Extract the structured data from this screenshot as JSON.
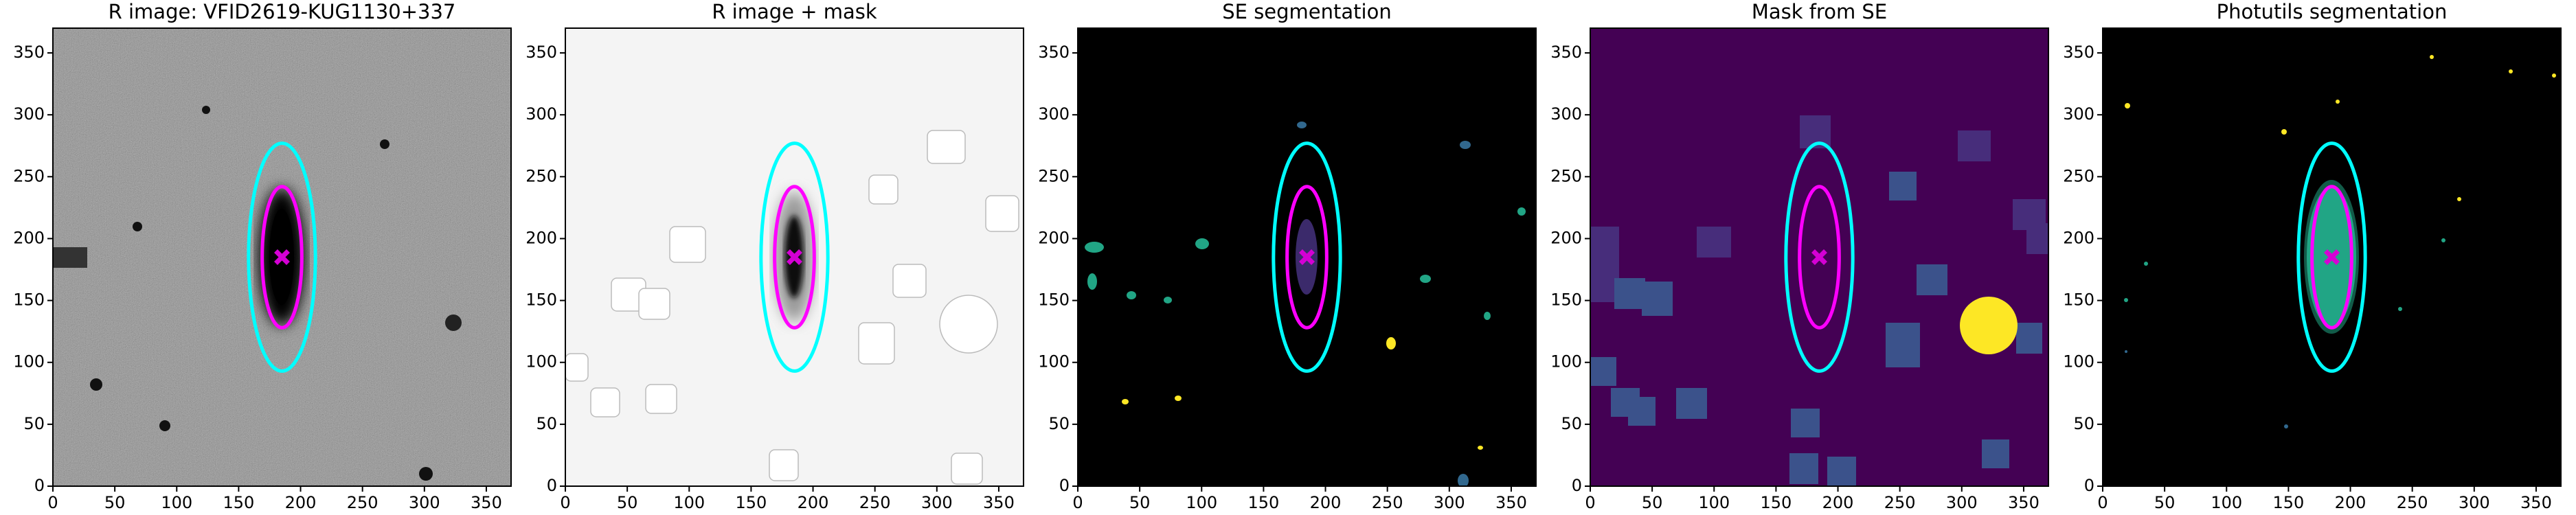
{
  "chart_data": [
    {
      "type": "image",
      "title": "R image: VFID2619-KUG1130+337",
      "background": "#7a7a7a",
      "xlim": [
        0,
        370
      ],
      "ylim": [
        0,
        370
      ],
      "xticks": [
        0,
        50,
        100,
        150,
        200,
        250,
        300,
        350
      ],
      "yticks": [
        0,
        50,
        100,
        150,
        200,
        250,
        300,
        350
      ],
      "ellipses": [
        {
          "color": "#00ffff",
          "cx": 185,
          "cy": 185,
          "rx": 27,
          "ry": 92
        },
        {
          "color": "#ff00ff",
          "cx": 185,
          "cy": 185,
          "rx": 16,
          "ry": 57
        }
      ],
      "marker": {
        "color": "#d400d4",
        "x": 185,
        "y": 185
      }
    },
    {
      "type": "image",
      "title": "R image + mask",
      "background": "#f4f4f4",
      "xlim": [
        0,
        370
      ],
      "ylim": [
        0,
        370
      ],
      "xticks": [
        0,
        50,
        100,
        150,
        200,
        250,
        300,
        350
      ],
      "yticks": [
        0,
        50,
        100,
        150,
        200,
        250,
        300,
        350
      ],
      "ellipses": [
        {
          "color": "#00ffff",
          "cx": 185,
          "cy": 185,
          "rx": 27,
          "ry": 92
        },
        {
          "color": "#ff00ff",
          "cx": 185,
          "cy": 185,
          "rx": 16,
          "ry": 57
        }
      ],
      "marker": {
        "color": "#d400d4",
        "x": 185,
        "y": 185
      }
    },
    {
      "type": "image",
      "title": "SE segmentation",
      "background": "#000000",
      "xlim": [
        0,
        370
      ],
      "ylim": [
        0,
        370
      ],
      "xticks": [
        0,
        50,
        100,
        150,
        200,
        250,
        300,
        350
      ],
      "yticks": [
        0,
        50,
        100,
        150,
        200,
        250,
        300,
        350
      ],
      "ellipses": [
        {
          "color": "#00ffff",
          "cx": 185,
          "cy": 185,
          "rx": 27,
          "ry": 92
        },
        {
          "color": "#ff00ff",
          "cx": 185,
          "cy": 185,
          "rx": 16,
          "ry": 57
        }
      ],
      "marker": {
        "color": "#d400d4",
        "x": 185,
        "y": 185
      }
    },
    {
      "type": "image",
      "title": "Mask from SE",
      "background": "#440154",
      "xlim": [
        0,
        370
      ],
      "ylim": [
        0,
        370
      ],
      "xticks": [
        0,
        50,
        100,
        150,
        200,
        250,
        300,
        350
      ],
      "yticks": [
        0,
        50,
        100,
        150,
        200,
        250,
        300,
        350
      ],
      "ellipses": [
        {
          "color": "#00ffff",
          "cx": 185,
          "cy": 185,
          "rx": 27,
          "ry": 92
        },
        {
          "color": "#ff00ff",
          "cx": 185,
          "cy": 185,
          "rx": 16,
          "ry": 57
        }
      ],
      "marker": {
        "color": "#d400d4",
        "x": 185,
        "y": 185
      }
    },
    {
      "type": "image",
      "title": "Photutils segmentation",
      "background": "#000000",
      "xlim": [
        0,
        370
      ],
      "ylim": [
        0,
        370
      ],
      "xticks": [
        0,
        50,
        100,
        150,
        200,
        250,
        300,
        350
      ],
      "yticks": [
        0,
        50,
        100,
        150,
        200,
        250,
        300,
        350
      ],
      "ellipses": [
        {
          "color": "#00ffff",
          "cx": 185,
          "cy": 185,
          "rx": 27,
          "ry": 92
        },
        {
          "color": "#ff00ff",
          "cx": 185,
          "cy": 185,
          "rx": 16,
          "ry": 57
        }
      ],
      "marker": {
        "color": "#d400d4",
        "x": 185,
        "y": 185
      }
    }
  ]
}
